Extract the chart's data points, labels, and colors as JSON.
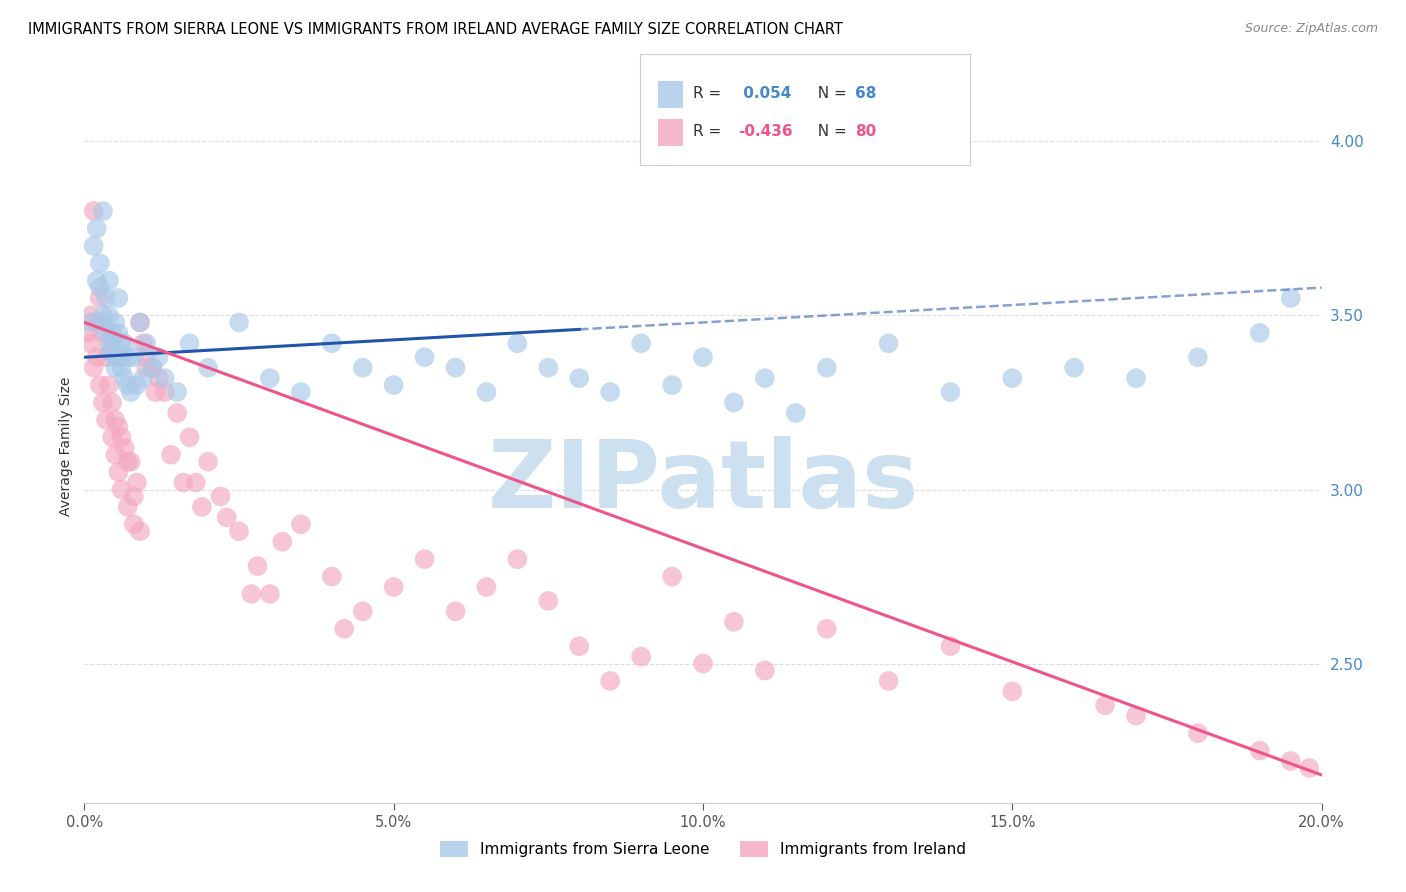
{
  "title": "IMMIGRANTS FROM SIERRA LEONE VS IMMIGRANTS FROM IRELAND AVERAGE FAMILY SIZE CORRELATION CHART",
  "source": "Source: ZipAtlas.com",
  "ylabel": "Average Family Size",
  "xlabel_ticks": [
    "0.0%",
    "5.0%",
    "10.0%",
    "15.0%",
    "20.0%"
  ],
  "xlabel_vals": [
    0.0,
    5.0,
    10.0,
    15.0,
    20.0
  ],
  "right_yticks": [
    2.5,
    3.0,
    3.5,
    4.0
  ],
  "xmin": 0.0,
  "xmax": 20.0,
  "ymin": 2.1,
  "ymax": 4.15,
  "R_blue": 0.054,
  "N_blue": 68,
  "R_pink": -0.436,
  "N_pink": 80,
  "legend_blue": "Immigrants from Sierra Leone",
  "legend_pink": "Immigrants from Ireland",
  "blue_color": "#a8c8e8",
  "pink_color": "#f4a8c0",
  "blue_line_color": "#2255aa",
  "pink_line_color": "#ee5588",
  "right_axis_color": "#4488cc",
  "grid_color": "#dddddd",
  "title_fontsize": 10.5,
  "source_fontsize": 9,
  "blue_scatter_x": [
    0.1,
    0.15,
    0.2,
    0.2,
    0.25,
    0.25,
    0.3,
    0.3,
    0.3,
    0.35,
    0.35,
    0.4,
    0.4,
    0.4,
    0.45,
    0.45,
    0.5,
    0.5,
    0.5,
    0.55,
    0.55,
    0.6,
    0.6,
    0.6,
    0.65,
    0.65,
    0.7,
    0.7,
    0.75,
    0.8,
    0.85,
    0.9,
    0.95,
    1.0,
    1.1,
    1.2,
    1.3,
    1.5,
    1.7,
    2.0,
    2.5,
    3.0,
    3.5,
    4.0,
    4.5,
    5.0,
    5.5,
    6.0,
    6.5,
    7.0,
    7.5,
    8.0,
    9.0,
    10.0,
    11.0,
    12.0,
    13.0,
    14.0,
    16.0,
    17.0,
    18.0,
    19.0,
    19.5,
    8.5,
    9.5,
    10.5,
    11.5,
    15.0
  ],
  "blue_scatter_y": [
    3.48,
    3.7,
    3.6,
    3.75,
    3.58,
    3.65,
    3.5,
    3.48,
    3.8,
    3.45,
    3.55,
    3.4,
    3.5,
    3.6,
    3.42,
    3.45,
    3.35,
    3.48,
    3.38,
    3.45,
    3.55,
    3.35,
    3.42,
    3.38,
    3.32,
    3.42,
    3.3,
    3.38,
    3.28,
    3.38,
    3.3,
    3.48,
    3.32,
    3.42,
    3.35,
    3.38,
    3.32,
    3.28,
    3.42,
    3.35,
    3.48,
    3.32,
    3.28,
    3.42,
    3.35,
    3.3,
    3.38,
    3.35,
    3.28,
    3.42,
    3.35,
    3.32,
    3.42,
    3.38,
    3.32,
    3.35,
    3.42,
    3.28,
    3.35,
    3.32,
    3.38,
    3.45,
    3.55,
    3.28,
    3.3,
    3.25,
    3.22,
    3.32
  ],
  "pink_scatter_x": [
    0.05,
    0.1,
    0.1,
    0.15,
    0.15,
    0.2,
    0.2,
    0.25,
    0.25,
    0.3,
    0.3,
    0.35,
    0.35,
    0.4,
    0.4,
    0.45,
    0.45,
    0.5,
    0.5,
    0.55,
    0.55,
    0.6,
    0.65,
    0.7,
    0.75,
    0.8,
    0.85,
    0.9,
    0.95,
    1.0,
    1.1,
    1.2,
    1.3,
    1.5,
    1.7,
    2.0,
    2.2,
    2.5,
    2.8,
    3.0,
    3.5,
    4.0,
    4.5,
    5.0,
    5.5,
    6.0,
    7.0,
    7.5,
    8.0,
    9.5,
    10.0,
    10.5,
    11.0,
    12.0,
    13.0,
    14.0,
    15.0,
    16.5,
    17.0,
    18.0,
    19.0,
    19.5,
    19.8,
    1.8,
    2.3,
    3.2,
    4.2,
    6.5,
    8.5,
    9.0,
    0.6,
    0.7,
    0.8,
    0.9,
    1.0,
    1.15,
    1.4,
    1.6,
    1.9,
    2.7
  ],
  "pink_scatter_y": [
    3.45,
    3.42,
    3.5,
    3.8,
    3.35,
    3.48,
    3.38,
    3.55,
    3.3,
    3.45,
    3.25,
    3.38,
    3.2,
    3.3,
    3.42,
    3.15,
    3.25,
    3.1,
    3.2,
    3.05,
    3.18,
    3.0,
    3.12,
    2.95,
    3.08,
    2.9,
    3.02,
    3.48,
    3.42,
    3.38,
    3.35,
    3.32,
    3.28,
    3.22,
    3.15,
    3.08,
    2.98,
    2.88,
    2.78,
    2.7,
    2.9,
    2.75,
    2.65,
    2.72,
    2.8,
    2.65,
    2.8,
    2.68,
    2.55,
    2.75,
    2.5,
    2.62,
    2.48,
    2.6,
    2.45,
    2.55,
    2.42,
    2.38,
    2.35,
    2.3,
    2.25,
    2.22,
    2.2,
    3.02,
    2.92,
    2.85,
    2.6,
    2.72,
    2.45,
    2.52,
    3.15,
    3.08,
    2.98,
    2.88,
    3.35,
    3.28,
    3.1,
    3.02,
    2.95,
    2.7
  ],
  "blue_line_x0": 0.0,
  "blue_line_y0": 3.38,
  "blue_line_x1": 20.0,
  "blue_line_y1": 3.58,
  "blue_solid_x1": 8.0,
  "pink_line_x0": 0.0,
  "pink_line_y0": 3.48,
  "pink_line_x1": 20.0,
  "pink_line_y1": 2.18,
  "watermark": "ZIPatlas",
  "watermark_color": "#cce0f0"
}
